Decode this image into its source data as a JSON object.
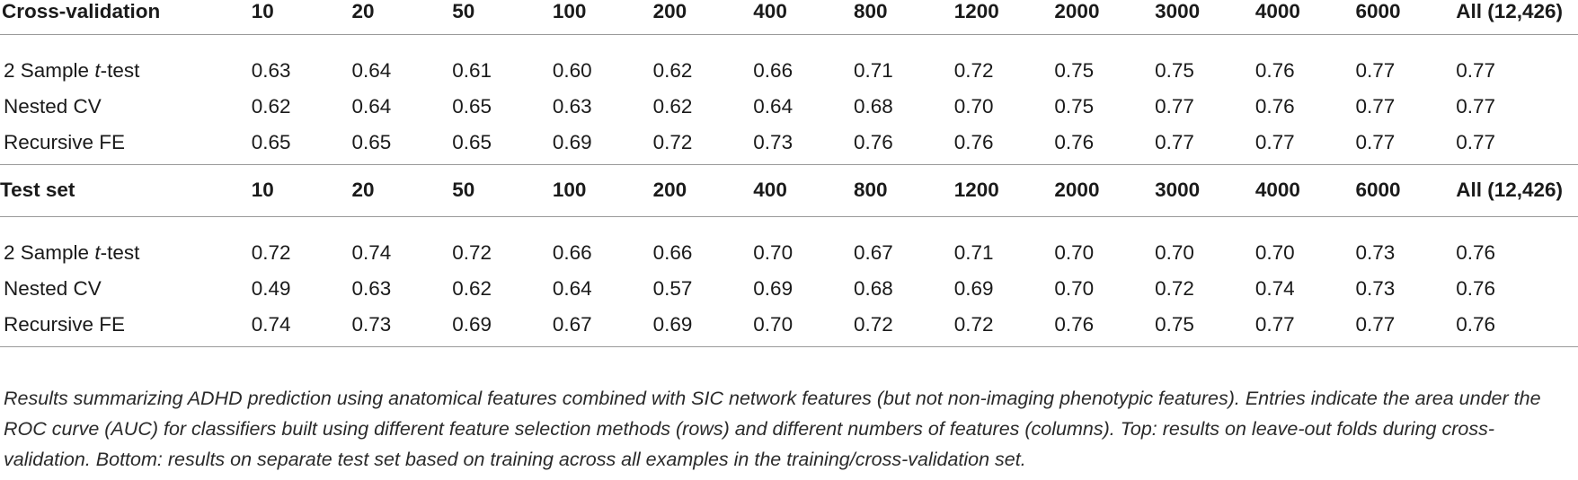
{
  "columns": [
    "10",
    "20",
    "50",
    "100",
    "200",
    "400",
    "800",
    "1200",
    "2000",
    "3000",
    "4000",
    "6000",
    "All (12,426)"
  ],
  "sections": [
    {
      "title": "Cross-validation",
      "rows": [
        {
          "pre": "2 Sample ",
          "ital": "t",
          "post": "-test",
          "values": [
            "0.63",
            "0.64",
            "0.61",
            "0.60",
            "0.62",
            "0.66",
            "0.71",
            "0.72",
            "0.75",
            "0.75",
            "0.76",
            "0.77",
            "0.77"
          ]
        },
        {
          "pre": "Nested CV",
          "ital": "",
          "post": "",
          "values": [
            "0.62",
            "0.64",
            "0.65",
            "0.63",
            "0.62",
            "0.64",
            "0.68",
            "0.70",
            "0.75",
            "0.77",
            "0.76",
            "0.77",
            "0.77"
          ]
        },
        {
          "pre": "Recursive FE",
          "ital": "",
          "post": "",
          "values": [
            "0.65",
            "0.65",
            "0.65",
            "0.69",
            "0.72",
            "0.73",
            "0.76",
            "0.76",
            "0.76",
            "0.77",
            "0.77",
            "0.77",
            "0.77"
          ]
        }
      ]
    },
    {
      "title": "Test set",
      "rows": [
        {
          "pre": "2 Sample ",
          "ital": "t",
          "post": "-test",
          "values": [
            "0.72",
            "0.74",
            "0.72",
            "0.66",
            "0.66",
            "0.70",
            "0.67",
            "0.71",
            "0.70",
            "0.70",
            "0.70",
            "0.73",
            "0.76"
          ]
        },
        {
          "pre": "Nested CV",
          "ital": "",
          "post": "",
          "values": [
            "0.49",
            "0.63",
            "0.62",
            "0.64",
            "0.57",
            "0.69",
            "0.68",
            "0.69",
            "0.70",
            "0.72",
            "0.74",
            "0.73",
            "0.76"
          ]
        },
        {
          "pre": "Recursive FE",
          "ital": "",
          "post": "",
          "values": [
            "0.74",
            "0.73",
            "0.69",
            "0.67",
            "0.69",
            "0.70",
            "0.72",
            "0.72",
            "0.76",
            "0.75",
            "0.77",
            "0.77",
            "0.76"
          ]
        }
      ]
    }
  ],
  "caption": "Results summarizing ADHD prediction using anatomical features combined with SIC network features (but not non-imaging phenotypic features). Entries indicate the area under the ROC curve (AUC) for classifiers built using different feature selection methods (rows) and different numbers of features (columns). Top: results on leave-out folds during cross-validation. Bottom: results on separate test set based on training across all examples in the training/cross-validation set."
}
